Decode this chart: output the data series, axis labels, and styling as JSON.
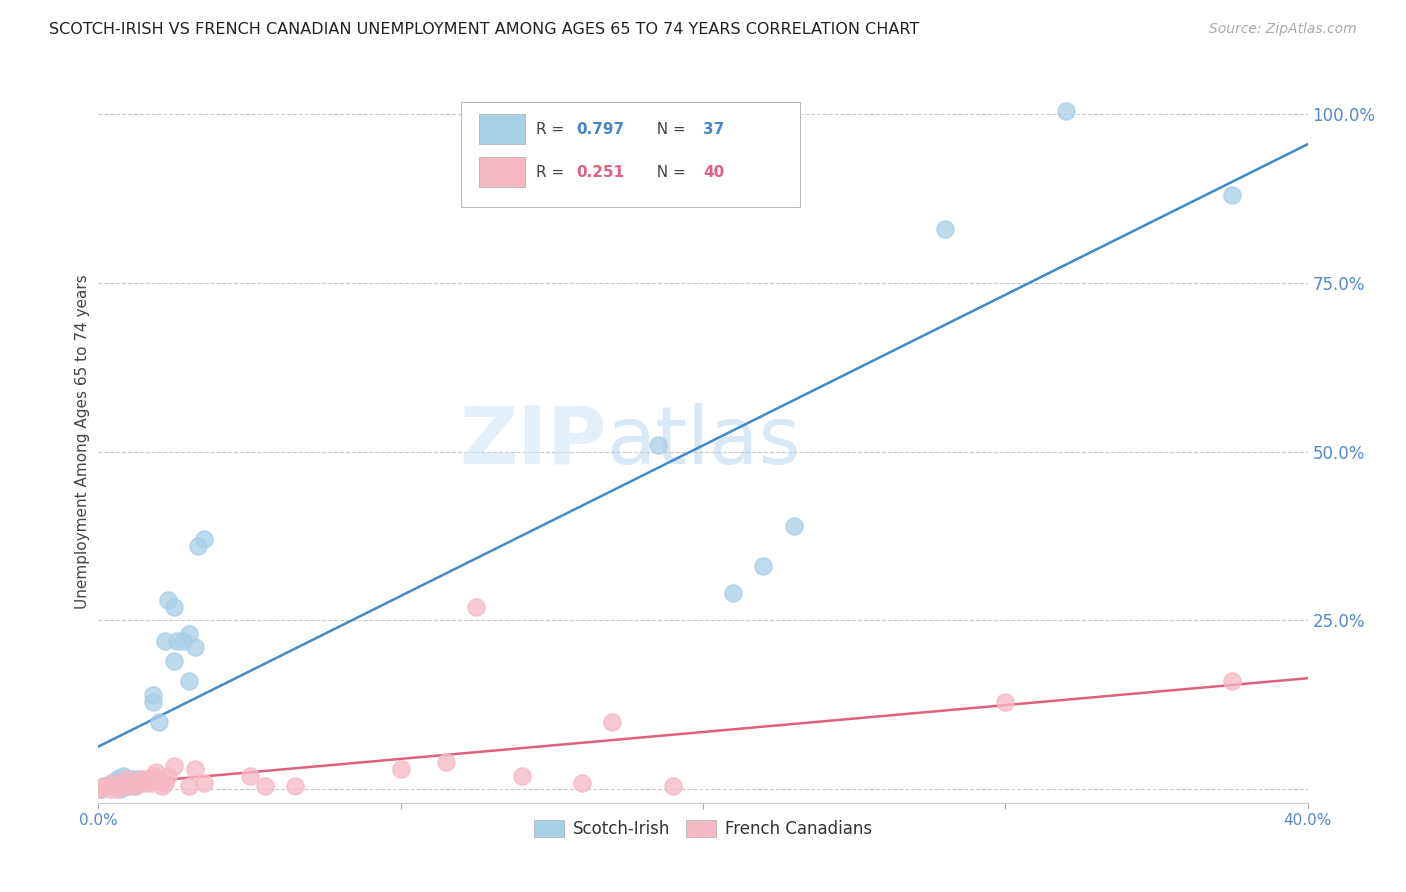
{
  "title": "SCOTCH-IRISH VS FRENCH CANADIAN UNEMPLOYMENT AMONG AGES 65 TO 74 YEARS CORRELATION CHART",
  "source": "Source: ZipAtlas.com",
  "ylabel": "Unemployment Among Ages 65 to 74 years",
  "xlim": [
    0.0,
    0.4
  ],
  "ylim": [
    -0.02,
    1.05
  ],
  "xticks": [
    0.0,
    0.1,
    0.2,
    0.3,
    0.4
  ],
  "xtick_labels_ends": [
    "0.0%",
    "40.0%"
  ],
  "yticks": [
    0.0,
    0.25,
    0.5,
    0.75,
    1.0
  ],
  "ytick_labels": [
    "",
    "25.0%",
    "50.0%",
    "75.0%",
    "100.0%"
  ],
  "legend_label_blue": "Scotch-Irish",
  "legend_label_pink": "French Canadians",
  "blue_color": "#a8cfe8",
  "pink_color": "#f5b8c4",
  "line_blue": "#4488cc",
  "line_pink": "#e06080",
  "tick_color": "#5588cc",
  "scotch_irish_x": [
    0.001,
    0.002,
    0.003,
    0.004,
    0.005,
    0.006,
    0.006,
    0.007,
    0.008,
    0.008,
    0.009,
    0.01,
    0.011,
    0.012,
    0.012,
    0.013,
    0.018,
    0.018,
    0.02,
    0.022,
    0.023,
    0.025,
    0.025,
    0.026,
    0.028,
    0.03,
    0.03,
    0.032,
    0.033,
    0.035,
    0.185,
    0.21,
    0.22,
    0.23,
    0.28,
    0.32,
    0.375
  ],
  "scotch_irish_y": [
    0.0,
    0.005,
    0.005,
    0.01,
    0.005,
    0.015,
    0.01,
    0.0,
    0.02,
    0.01,
    0.005,
    0.01,
    0.015,
    0.01,
    0.005,
    0.015,
    0.13,
    0.14,
    0.1,
    0.22,
    0.28,
    0.19,
    0.27,
    0.22,
    0.22,
    0.23,
    0.16,
    0.21,
    0.36,
    0.37,
    0.51,
    0.29,
    0.33,
    0.39,
    0.83,
    1.005,
    0.88
  ],
  "french_canadian_x": [
    0.001,
    0.002,
    0.003,
    0.004,
    0.005,
    0.006,
    0.007,
    0.008,
    0.008,
    0.009,
    0.01,
    0.011,
    0.012,
    0.013,
    0.014,
    0.015,
    0.016,
    0.017,
    0.018,
    0.019,
    0.02,
    0.021,
    0.022,
    0.023,
    0.025,
    0.03,
    0.032,
    0.035,
    0.05,
    0.055,
    0.065,
    0.1,
    0.115,
    0.125,
    0.14,
    0.16,
    0.17,
    0.19,
    0.3,
    0.375
  ],
  "french_canadian_y": [
    0.0,
    0.005,
    0.005,
    0.0,
    0.01,
    0.0,
    0.005,
    0.005,
    0.01,
    0.015,
    0.005,
    0.01,
    0.005,
    0.01,
    0.015,
    0.01,
    0.015,
    0.01,
    0.02,
    0.025,
    0.015,
    0.005,
    0.01,
    0.02,
    0.035,
    0.005,
    0.03,
    0.01,
    0.02,
    0.005,
    0.005,
    0.03,
    0.04,
    0.27,
    0.02,
    0.01,
    0.1,
    0.005,
    0.13,
    0.16
  ]
}
